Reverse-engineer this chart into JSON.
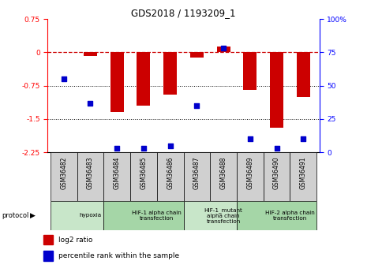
{
  "title": "GDS2018 / 1193209_1",
  "samples": [
    "GSM36482",
    "GSM36483",
    "GSM36484",
    "GSM36485",
    "GSM36486",
    "GSM36487",
    "GSM36488",
    "GSM36489",
    "GSM36490",
    "GSM36491"
  ],
  "log2_ratio": [
    0.0,
    -0.08,
    -1.35,
    -1.2,
    -0.95,
    -0.12,
    0.13,
    -0.85,
    -1.7,
    -1.0
  ],
  "percentile_rank": [
    55,
    37,
    3,
    3,
    5,
    35,
    78,
    10,
    3,
    10
  ],
  "ylim_left": [
    -2.25,
    0.75
  ],
  "ylim_right": [
    0,
    100
  ],
  "yticks_left": [
    0.75,
    0,
    -0.75,
    -1.5,
    -2.25
  ],
  "yticks_right": [
    100,
    75,
    50,
    25,
    0
  ],
  "protocol_groups": [
    {
      "label": "hypoxia",
      "start": 0,
      "end": 2,
      "color": "#c8e6c9"
    },
    {
      "label": "HIF-1 alpha chain\ntransfection",
      "start": 2,
      "end": 5,
      "color": "#a5d6a7"
    },
    {
      "label": "HIF-1_mutant\nalpha chain\ntransfection",
      "start": 5,
      "end": 7,
      "color": "#c8e6c9"
    },
    {
      "label": "HIF-2 alpha chain\ntransfection",
      "start": 7,
      "end": 10,
      "color": "#a5d6a7"
    }
  ],
  "bar_color": "#cc0000",
  "dot_color": "#0000cc",
  "ref_line_color": "#cc0000",
  "grid_line_color": "#000000",
  "bar_width": 0.5,
  "sample_box_color": "#d0d0d0",
  "fig_width": 4.65,
  "fig_height": 3.45,
  "dpi": 100
}
